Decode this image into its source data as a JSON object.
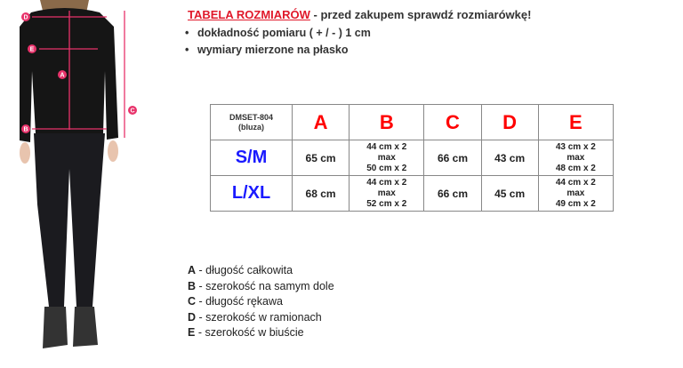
{
  "header": {
    "title": "TABELA ROZMIARÓW",
    "subtitle": " - przed zakupem sprawdź rozmiarówkę!"
  },
  "bullets": [
    "dokładność pomiaru ( + / - ) 1 cm",
    "wymiary mierzone na płasko"
  ],
  "figure": {
    "markers": [
      "A",
      "B",
      "C",
      "D",
      "E"
    ],
    "accent": "#e8336b"
  },
  "table": {
    "code": "DMSET-804",
    "code_sub": "(bluza)",
    "columns": [
      "A",
      "B",
      "C",
      "D",
      "E"
    ],
    "rows": [
      {
        "size": "S/M",
        "A": "65 cm",
        "B": [
          "44 cm x 2",
          "max",
          "50 cm x 2"
        ],
        "C": "66 cm",
        "D": "43 cm",
        "E": [
          "43 cm x 2",
          "max",
          "48 cm x 2"
        ]
      },
      {
        "size": "L/XL",
        "A": "68 cm",
        "B": [
          "44 cm x 2",
          "max",
          "52 cm x 2"
        ],
        "C": "66 cm",
        "D": "45 cm",
        "E": [
          "44 cm x 2",
          "max",
          "49 cm x 2"
        ]
      }
    ]
  },
  "legend": [
    {
      "key": "A",
      "text": " - długość całkowita"
    },
    {
      "key": "B",
      "text": " - szerokość na samym dole"
    },
    {
      "key": "C",
      "text": " - długość rękawa"
    },
    {
      "key": "D",
      "text": " - szerokość w ramionach"
    },
    {
      "key": "E",
      "text": " - szerokość w biuście"
    }
  ]
}
